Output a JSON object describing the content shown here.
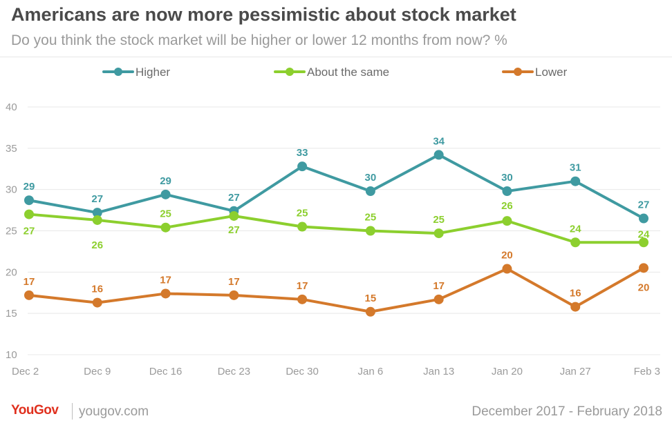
{
  "title": "Americans are now more pessimistic about stock market",
  "subtitle": "Do you think the stock market will be higher or lower 12 months from now? %",
  "footer": {
    "logo": "YouGov",
    "site": "yougov.com",
    "date_range": "December 2017 - February 2018"
  },
  "colors": {
    "higher": "#3f9aa1",
    "same": "#8ccf2e",
    "lower": "#d4792b",
    "grid": "#e8e8e8",
    "axis_text": "#9a9a9a"
  },
  "chart_data": {
    "type": "line",
    "title": "Americans are now more pessimistic about stock market",
    "subtitle": "Do you think the stock market will be higher or lower 12 months from now? %",
    "x": [
      "Dec 2",
      "Dec 9",
      "Dec 16",
      "Dec 23",
      "Dec 30",
      "Jan 6",
      "Jan 13",
      "Jan 20",
      "Jan 27",
      "Feb 3"
    ],
    "ylim": [
      10,
      40
    ],
    "yticks": [
      10,
      15,
      20,
      25,
      30,
      35,
      40
    ],
    "grid": true,
    "legend": "top",
    "series": [
      {
        "name": "Higher",
        "values": [
          28.7,
          27.2,
          29.4,
          27.4,
          32.8,
          29.8,
          34.2,
          29.8,
          31.0,
          26.5
        ],
        "labels": [
          "29",
          "27",
          "29",
          "27",
          "33",
          "30",
          "34",
          "30",
          "31",
          "27"
        ]
      },
      {
        "name": "About the same",
        "values": [
          27.0,
          26.3,
          25.4,
          26.8,
          25.5,
          25.0,
          24.7,
          26.2,
          23.6,
          23.6
        ],
        "labels": [
          "27",
          "26",
          "25",
          "27",
          "25",
          "25",
          "25",
          "26",
          "24",
          "24"
        ]
      },
      {
        "name": "Lower",
        "values": [
          17.2,
          16.3,
          17.4,
          17.2,
          16.7,
          15.2,
          16.7,
          20.4,
          15.8,
          20.5
        ],
        "labels": [
          "17",
          "16",
          "17",
          "17",
          "17",
          "15",
          "17",
          "20",
          "16",
          "20"
        ]
      }
    ]
  }
}
